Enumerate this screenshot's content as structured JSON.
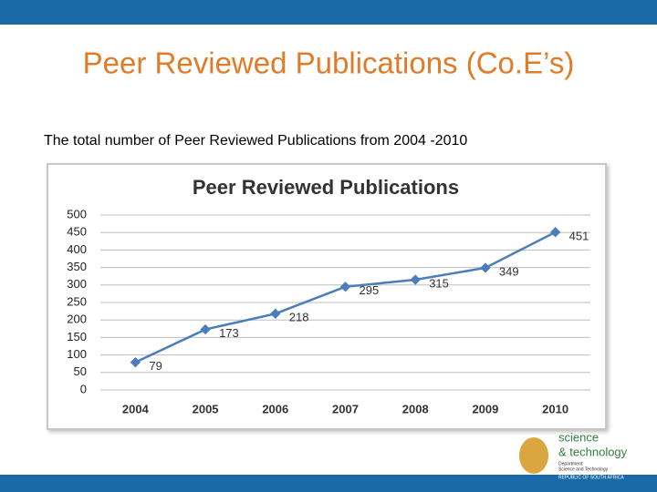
{
  "slide": {
    "title": "Peer Reviewed Publications (Co.E’s)",
    "subtitle": "The total number of Peer Reviewed Publications from 2004 -2010",
    "logo": {
      "line1": "science",
      "line2": "& technology",
      "dept1": "Department:",
      "dept2": "Science and Technology",
      "dept3": "REPUBLIC OF SOUTH AFRICA"
    }
  },
  "chart_data": {
    "type": "line",
    "title": "Peer Reviewed Publications",
    "categories": [
      "2004",
      "2005",
      "2006",
      "2007",
      "2008",
      "2009",
      "2010"
    ],
    "values": [
      79,
      173,
      218,
      295,
      315,
      349,
      451
    ],
    "color": "#4a7ebb",
    "ylim": [
      0,
      500
    ],
    "yticks": [
      0,
      50,
      100,
      150,
      200,
      250,
      300,
      350,
      400,
      450,
      500
    ],
    "grid": true
  }
}
